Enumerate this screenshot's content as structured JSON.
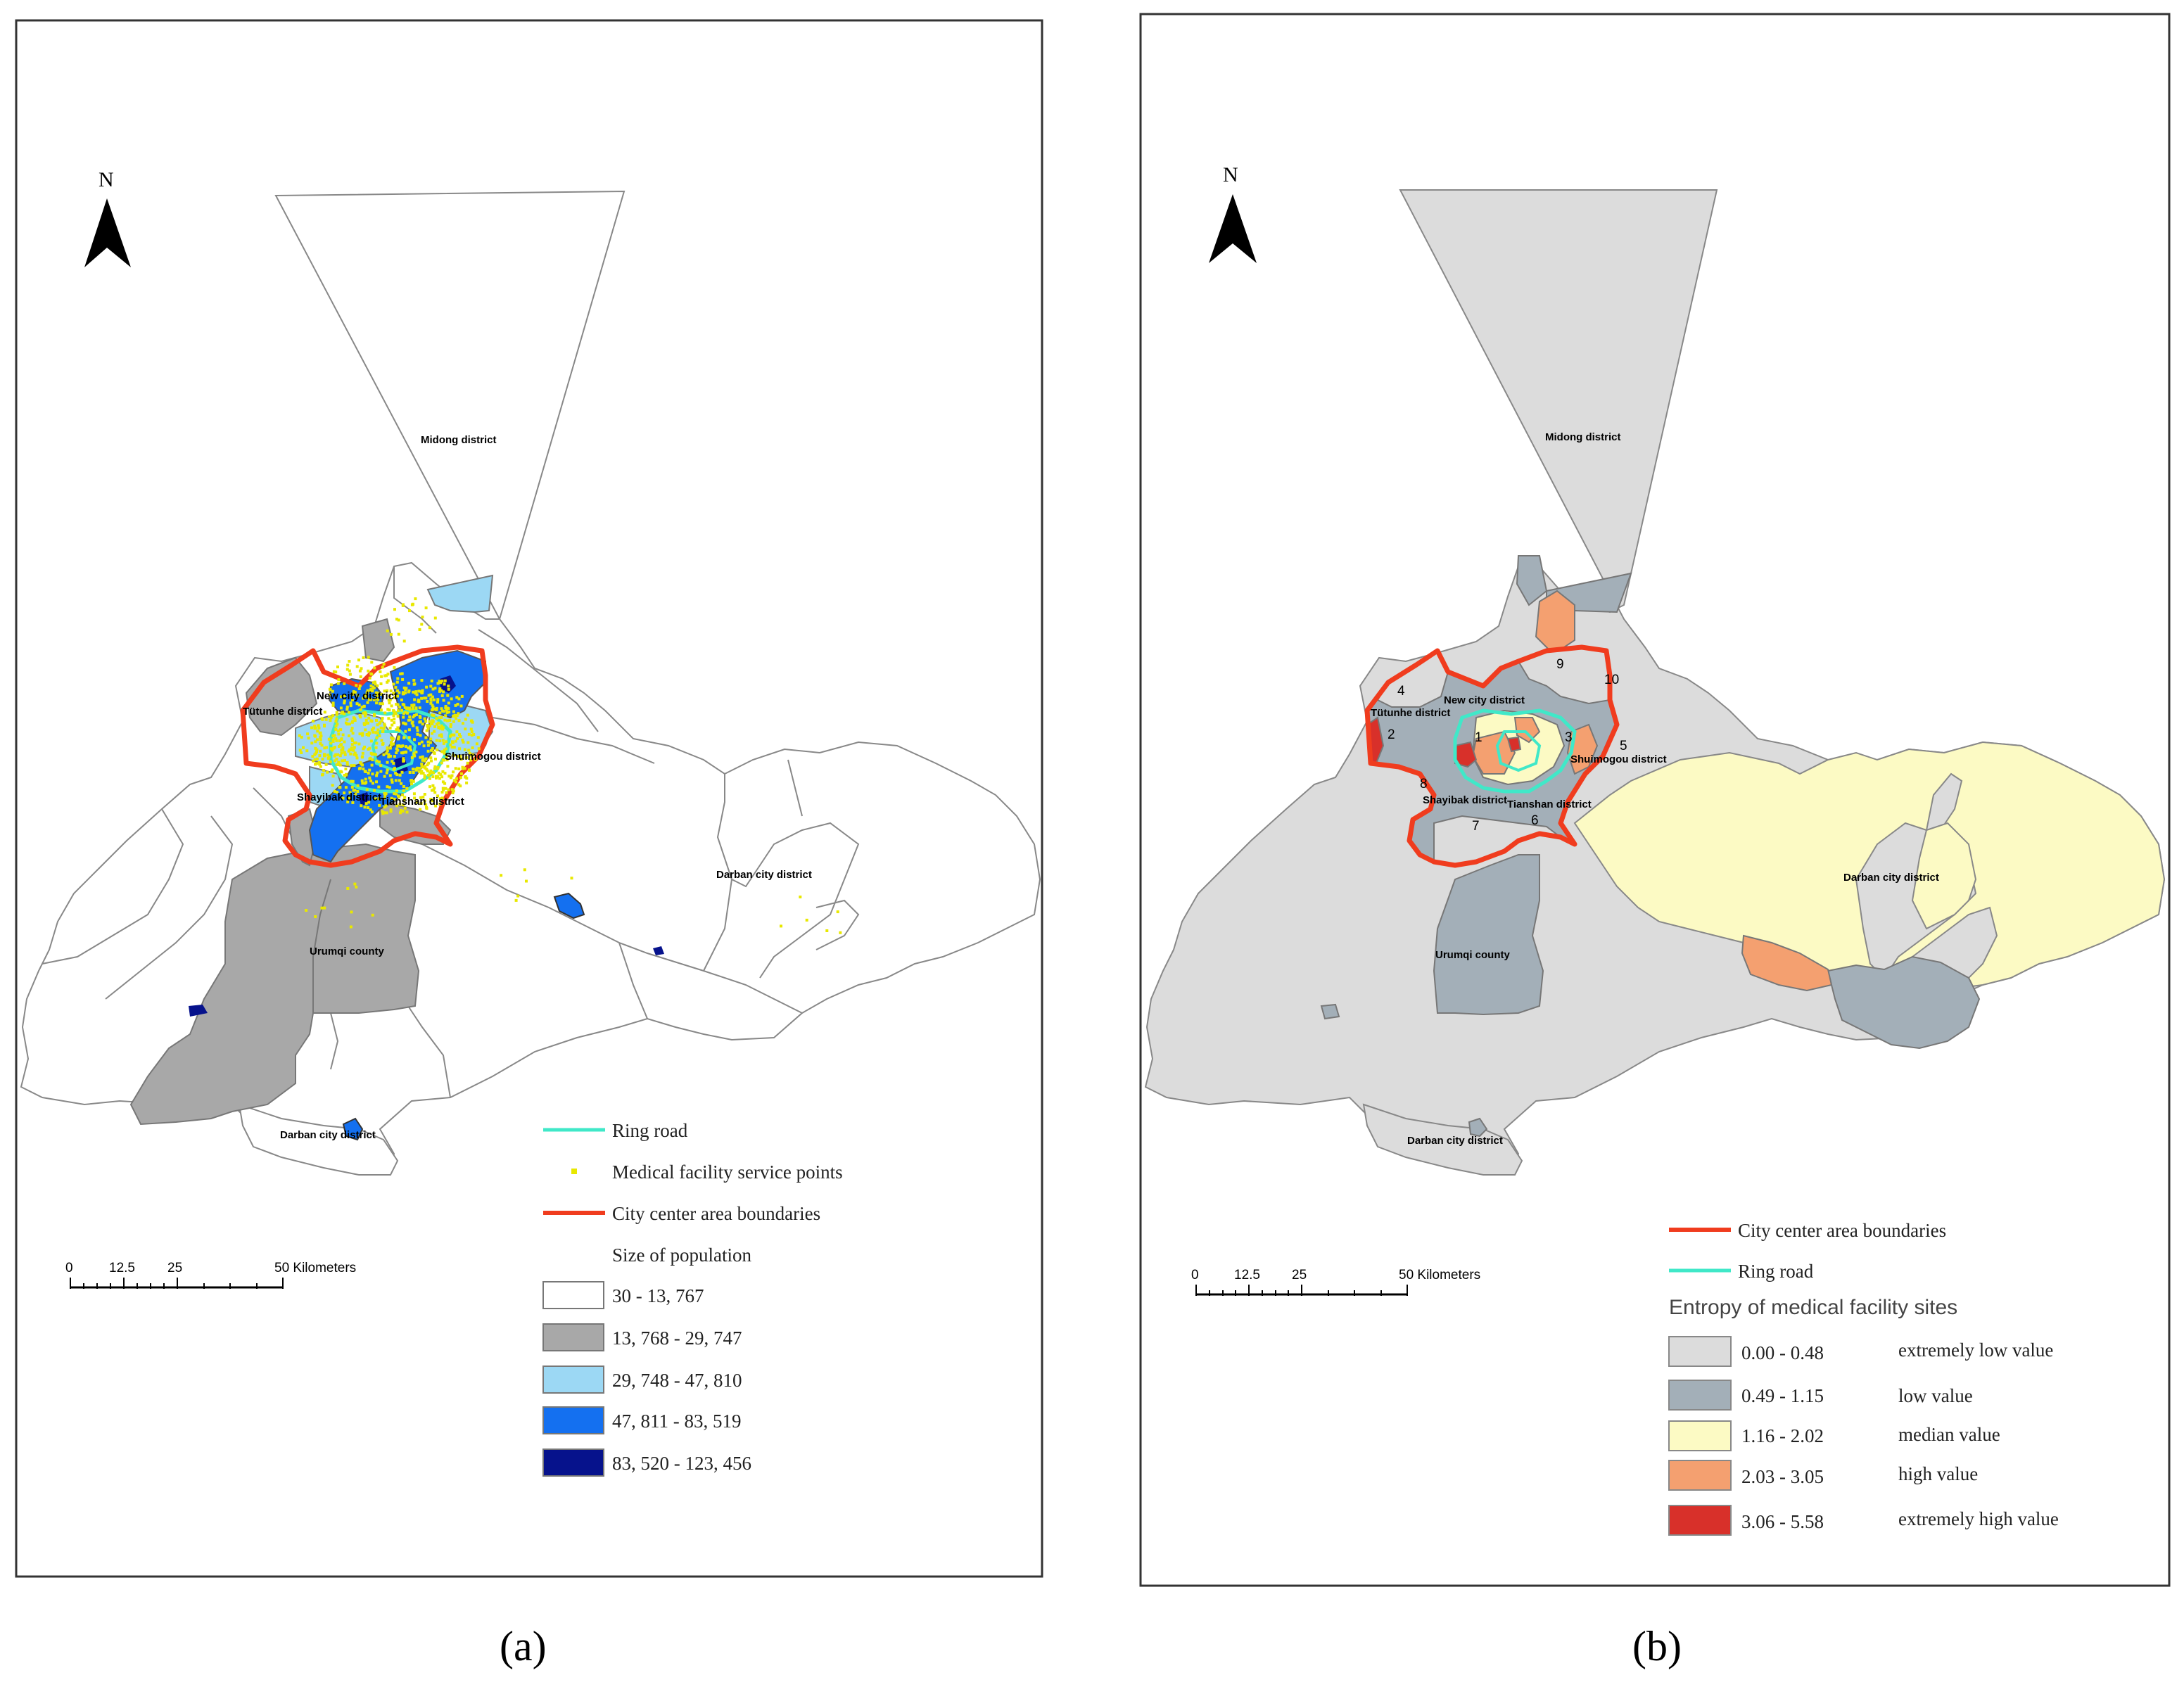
{
  "panels": [
    {
      "id": "a",
      "caption": "(a)",
      "north_label": "N",
      "scale": {
        "ticks": [
          "0",
          "12.5",
          "25",
          "50 Kilometers"
        ]
      },
      "district_labels": [
        "Midong district",
        "New city district",
        "Tütunhe district",
        "Shuimogou district",
        "Shayibak district",
        "Tianshan district",
        "Darban city district",
        "Urumqi county",
        "Darban city district"
      ],
      "legend": {
        "items": [
          {
            "label": "Ring road",
            "symbol": "line",
            "color": "#40e8c8"
          },
          {
            "label": "Medical facility service points",
            "symbol": "point",
            "color": "#e8e800"
          },
          {
            "label": "City center area boundaries",
            "symbol": "line",
            "color": "#f03c1e"
          }
        ],
        "title": "Size of population",
        "classes": [
          {
            "label": "30 - 13, 767",
            "color": "#ffffff"
          },
          {
            "label": "13, 768 - 29, 747",
            "color": "#a8a8a8"
          },
          {
            "label": "29, 748 - 47, 810",
            "color": "#9cd8f4"
          },
          {
            "label": "47, 811 - 83, 519",
            "color": "#1470f0"
          },
          {
            "label": "83, 520 - 123, 456",
            "color": "#06128c"
          }
        ]
      }
    },
    {
      "id": "b",
      "caption": "(b)",
      "north_label": "N",
      "scale": {
        "ticks": [
          "0",
          "12.5",
          "25",
          "50 Kilometers"
        ]
      },
      "district_labels": [
        "Midong district",
        "New city district",
        "Tütunhe district",
        "Shuimogou district",
        "Shayibak district",
        "Tianshan district",
        "Darban city district",
        "Urumqi county",
        "Darban city district"
      ],
      "numbers": [
        "1",
        "2",
        "3",
        "4",
        "5",
        "6",
        "7",
        "8",
        "9",
        "10"
      ],
      "legend": {
        "items": [
          {
            "label": "City center area boundaries",
            "symbol": "line",
            "color": "#f03c1e"
          },
          {
            "label": "Ring road",
            "symbol": "line",
            "color": "#40e8c8"
          }
        ],
        "title": "Entropy of medical facility sites",
        "classes": [
          {
            "range": "0.00 - 0.48",
            "label": "extremely low value",
            "color": "#dcdcdc"
          },
          {
            "range": "0.49 - 1.15",
            "label": "low value",
            "color": "#a3afb8"
          },
          {
            "range": "1.16 - 2.02",
            "label": "median value",
            "color": "#fcfac4"
          },
          {
            "range": "2.03 - 3.05",
            "label": "high value",
            "color": "#f4a070"
          },
          {
            "range": "3.06 - 5.58",
            "label": "extremely high value",
            "color": "#d8302a"
          }
        ]
      }
    }
  ]
}
